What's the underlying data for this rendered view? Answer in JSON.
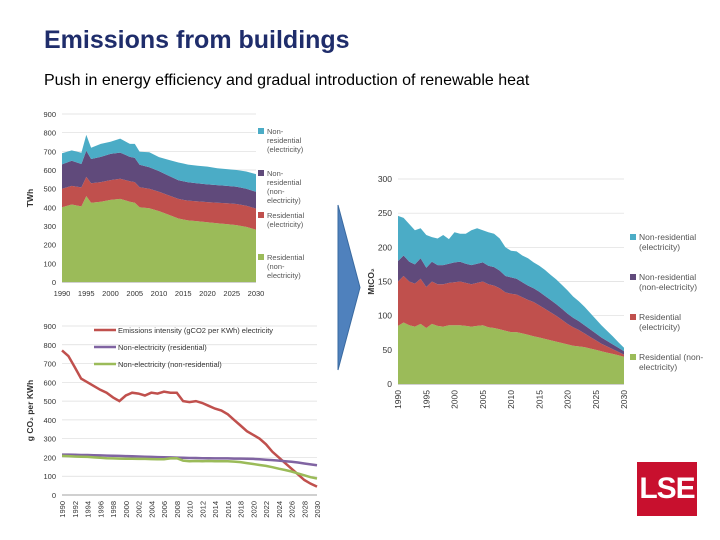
{
  "page": {
    "title": "Emissions from buildings",
    "subtitle": "Push in energy efficiency and gradual introduction of renewable heat",
    "logo_text": "LSE",
    "logo_color": "#c8102e"
  },
  "chart_data": [
    {
      "id": "twh",
      "type": "area",
      "stacked": true,
      "ylabel": "TWh",
      "ylim": [
        0,
        900
      ],
      "yticks": [
        0,
        100,
        200,
        300,
        400,
        500,
        600,
        700,
        800,
        900
      ],
      "x": [
        1990,
        1992,
        1994,
        1995,
        1996,
        1998,
        2000,
        2002,
        2004,
        2005,
        2006,
        2008,
        2010,
        2012,
        2014,
        2015,
        2016,
        2018,
        2020,
        2022,
        2024,
        2026,
        2028,
        2030
      ],
      "xticks": [
        1990,
        1995,
        2000,
        2005,
        2010,
        2015,
        2020,
        2025,
        2030
      ],
      "series": [
        {
          "name": "Residential (non-electricity)",
          "label_lines": [
            "Residential",
            "(non-",
            "electricity)"
          ],
          "color": "#9bbb59",
          "values": [
            400,
            415,
            405,
            460,
            425,
            430,
            440,
            445,
            430,
            425,
            400,
            395,
            380,
            360,
            340,
            335,
            330,
            325,
            320,
            315,
            310,
            305,
            295,
            280
          ]
        },
        {
          "name": "Residential (electricity)",
          "label_lines": [
            "Residential",
            "(electricity)"
          ],
          "color": "#c0504d",
          "values": [
            100,
            100,
            102,
            103,
            104,
            105,
            106,
            108,
            110,
            110,
            108,
            105,
            104,
            104,
            105,
            105,
            106,
            107,
            108,
            110,
            112,
            113,
            113,
            113
          ]
        },
        {
          "name": "Non-residential (non-electricity)",
          "label_lines": [
            "Non-",
            "residential",
            "(non-",
            "electricity)"
          ],
          "color": "#604a7b",
          "values": [
            130,
            135,
            125,
            140,
            130,
            135,
            140,
            140,
            130,
            130,
            120,
            115,
            110,
            105,
            100,
            100,
            98,
            96,
            95,
            94,
            93,
            92,
            92,
            90
          ]
        },
        {
          "name": "Non-residential (electricity)",
          "label_lines": [
            "Non-",
            "residential",
            "(electricity)"
          ],
          "color": "#4bacc6",
          "values": [
            60,
            55,
            60,
            85,
            60,
            70,
            65,
            75,
            70,
            75,
            70,
            80,
            75,
            85,
            95,
            95,
            95,
            95,
            95,
            90,
            90,
            90,
            92,
            95
          ]
        }
      ]
    },
    {
      "id": "intensity",
      "type": "line",
      "ylabel": "g CO₂ per KWh",
      "ylim": [
        0,
        900
      ],
      "yticks": [
        0,
        100,
        200,
        300,
        400,
        500,
        600,
        700,
        800,
        900
      ],
      "x": [
        1990,
        1991,
        1992,
        1993,
        1994,
        1995,
        1996,
        1997,
        1998,
        1999,
        2000,
        2001,
        2002,
        2003,
        2004,
        2005,
        2006,
        2007,
        2008,
        2009,
        2010,
        2011,
        2012,
        2013,
        2014,
        2015,
        2016,
        2017,
        2018,
        2019,
        2020,
        2021,
        2022,
        2023,
        2024,
        2025,
        2026,
        2027,
        2028,
        2029,
        2030
      ],
      "xticks": [
        1990,
        1992,
        1994,
        1996,
        1998,
        2000,
        2002,
        2004,
        2006,
        2008,
        2010,
        2012,
        2014,
        2016,
        2018,
        2020,
        2022,
        2024,
        2026,
        2028,
        2030
      ],
      "series": [
        {
          "name": "Emissions intensity (gCO2 per KWh) electricity",
          "color": "#c0504d",
          "width": 2.5,
          "values": [
            770,
            740,
            680,
            620,
            600,
            580,
            560,
            545,
            520,
            500,
            530,
            545,
            540,
            530,
            545,
            540,
            550,
            545,
            545,
            500,
            495,
            500,
            490,
            475,
            460,
            450,
            430,
            400,
            370,
            340,
            320,
            300,
            270,
            230,
            200,
            170,
            140,
            110,
            80,
            60,
            45
          ]
        },
        {
          "name": "Non-electricity (residential)",
          "color": "#8064a2",
          "width": 2.5,
          "values": [
            215,
            215,
            214,
            213,
            213,
            212,
            211,
            210,
            209,
            208,
            207,
            206,
            205,
            204,
            203,
            202,
            201,
            200,
            199,
            198,
            197,
            197,
            196,
            196,
            195,
            195,
            195,
            194,
            194,
            193,
            192,
            190,
            188,
            186,
            183,
            180,
            177,
            173,
            168,
            163,
            158
          ]
        },
        {
          "name": "Non-electricity (non-residential)",
          "color": "#9bbb59",
          "width": 2.5,
          "values": [
            208,
            207,
            205,
            204,
            203,
            200,
            198,
            196,
            195,
            194,
            193,
            193,
            192,
            192,
            191,
            190,
            190,
            195,
            196,
            183,
            180,
            181,
            180,
            181,
            180,
            180,
            180,
            178,
            175,
            170,
            165,
            160,
            155,
            148,
            140,
            133,
            125,
            115,
            105,
            95,
            88
          ]
        }
      ]
    },
    {
      "id": "mtco2",
      "type": "area",
      "stacked": true,
      "ylabel": "MtCO₂",
      "ylim": [
        0,
        300
      ],
      "yticks": [
        0,
        50,
        100,
        150,
        200,
        250,
        300
      ],
      "x": [
        1990,
        1991,
        1992,
        1993,
        1994,
        1995,
        1996,
        1997,
        1998,
        1999,
        2000,
        2001,
        2002,
        2003,
        2004,
        2005,
        2006,
        2007,
        2008,
        2009,
        2010,
        2011,
        2012,
        2013,
        2014,
        2015,
        2016,
        2017,
        2018,
        2019,
        2020,
        2021,
        2022,
        2023,
        2024,
        2025,
        2026,
        2027,
        2028,
        2029,
        2030
      ],
      "xticks": [
        1990,
        1995,
        2000,
        2005,
        2010,
        2015,
        2020,
        2025,
        2030
      ],
      "series": [
        {
          "name": "Residential (non-electricity)",
          "label_lines": [
            "Residential (non-",
            "electricity)"
          ],
          "color": "#9bbb59",
          "values": [
            85,
            90,
            86,
            84,
            88,
            82,
            88,
            85,
            84,
            86,
            86,
            86,
            85,
            84,
            85,
            86,
            83,
            82,
            80,
            78,
            76,
            76,
            74,
            72,
            70,
            68,
            66,
            64,
            62,
            60,
            58,
            56,
            55,
            54,
            52,
            50,
            48,
            46,
            44,
            42,
            40
          ]
        },
        {
          "name": "Residential (electricity)",
          "label_lines": [
            "Residential",
            "(electricity)"
          ],
          "color": "#c0504d",
          "values": [
            65,
            68,
            64,
            63,
            66,
            60,
            62,
            61,
            62,
            62,
            63,
            64,
            63,
            62,
            63,
            64,
            63,
            62,
            60,
            56,
            56,
            55,
            53,
            51,
            50,
            47,
            44,
            41,
            38,
            34,
            30,
            27,
            24,
            20,
            17,
            14,
            11,
            9,
            7,
            5,
            3
          ]
        },
        {
          "name": "Non-residential (non-electricity)",
          "label_lines": [
            "Non-residential",
            "(non-electricity)"
          ],
          "color": "#604a7b",
          "values": [
            30,
            30,
            29,
            28,
            30,
            28,
            29,
            28,
            28,
            28,
            29,
            29,
            28,
            28,
            28,
            28,
            27,
            27,
            26,
            24,
            24,
            23,
            22,
            21,
            20,
            20,
            19,
            18,
            17,
            16,
            15,
            14,
            13,
            12,
            11,
            10,
            9,
            8,
            7,
            6,
            5
          ]
        },
        {
          "name": "Non-residential (electricity)",
          "label_lines": [
            "Non-residential",
            "(electricity)"
          ],
          "color": "#4bacc6",
          "values": [
            66,
            55,
            55,
            50,
            44,
            48,
            36,
            39,
            44,
            36,
            44,
            41,
            44,
            51,
            52,
            47,
            49,
            49,
            47,
            42,
            39,
            40,
            39,
            40,
            38,
            38,
            38,
            37,
            36,
            35,
            34,
            31,
            29,
            27,
            24,
            21,
            18,
            15,
            12,
            8,
            5
          ]
        }
      ]
    }
  ]
}
